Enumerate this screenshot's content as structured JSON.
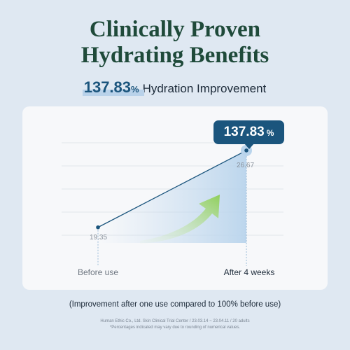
{
  "title": {
    "line1": "Clinically Proven",
    "line2": "Hydrating Benefits"
  },
  "headline": {
    "value": "137.83",
    "unit": "%",
    "label": "Hydration Improvement"
  },
  "badge": {
    "value": "137.83",
    "unit": "%"
  },
  "chart_data": {
    "type": "line",
    "categories": [
      "Before use",
      "After 4 weeks"
    ],
    "values": [
      19.35,
      26.67
    ],
    "value_labels": [
      "19.35",
      "26.67"
    ],
    "ylim": [
      17,
      29
    ],
    "grid": true,
    "annotation": "137.83 %"
  },
  "colors": {
    "accent": "#1b557d",
    "line": "#1b557d",
    "arrow": "#8fcf5a",
    "title": "#1f4a3a"
  },
  "footnote": "(Improvement after one use compared to 100% before use)",
  "source": {
    "line1": "Human Ethic Co., Ltd. Skin Clinical Trial Center / 23.03.14 ~ 23.04.11 / 20 adults",
    "line2": "*Percentages indicated may vary due to rounding of numerical values."
  }
}
